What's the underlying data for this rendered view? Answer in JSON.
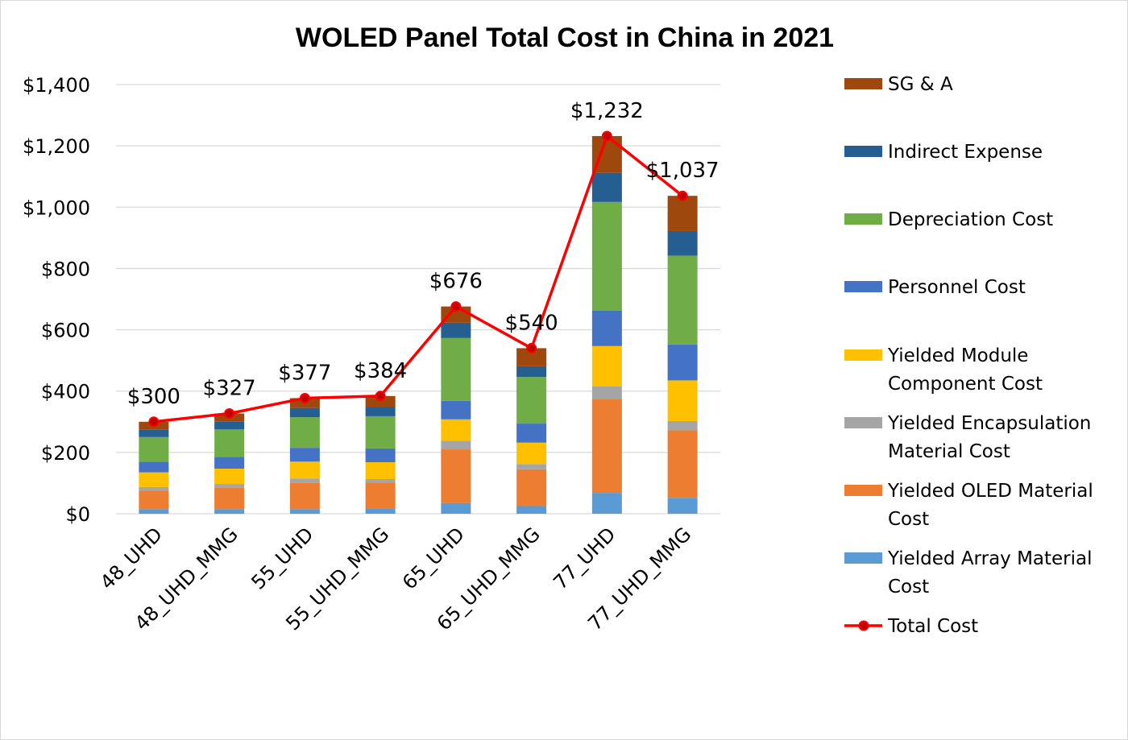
{
  "chart_data": {
    "type": "bar",
    "stacked": true,
    "title": "WOLED Panel Total Cost in China in 2021",
    "xlabel": "",
    "ylabel": "",
    "ylim": [
      0,
      1400
    ],
    "yticks": [
      0,
      200,
      400,
      600,
      800,
      1000,
      1200,
      1400
    ],
    "ytick_labels": [
      "$0",
      "$200",
      "$400",
      "$600",
      "$800",
      "$1,000",
      "$1,200",
      "$1,400"
    ],
    "grid": true,
    "legend_position": "right",
    "categories": [
      "48_UHD",
      "48_UHD_MMG",
      "55_UHD",
      "55_UHD_MMG",
      "65_UHD",
      "65_UHD_MMG",
      "77_UHD",
      "77_UHD_MMG"
    ],
    "series": [
      {
        "name": "Yielded Array Material Cost",
        "legend_lines": [
          "Yielded Array Material",
          "Cost"
        ],
        "color": "#5b9bd5",
        "values": [
          15,
          15,
          15,
          18,
          35,
          25,
          68,
          52
        ]
      },
      {
        "name": "Yielded OLED Material Cost",
        "legend_lines": [
          "Yielded OLED Material",
          "Cost"
        ],
        "color": "#ed7d31",
        "values": [
          60,
          70,
          85,
          83,
          175,
          120,
          305,
          220
        ]
      },
      {
        "name": "Yielded Encapsulation Material Cost",
        "legend_lines": [
          "Yielded Encapsulation",
          "Material Cost"
        ],
        "color": "#a5a5a5",
        "values": [
          12,
          12,
          15,
          12,
          28,
          17,
          42,
          30
        ]
      },
      {
        "name": "Yielded Module Component Cost",
        "legend_lines": [
          "Yielded Module",
          "Component Cost"
        ],
        "color": "#ffc000",
        "values": [
          48,
          50,
          55,
          55,
          70,
          70,
          132,
          133
        ]
      },
      {
        "name": "Personnel Cost",
        "legend_lines": [
          "Personnel Cost"
        ],
        "color": "#4472c4",
        "values": [
          35,
          38,
          45,
          45,
          60,
          62,
          115,
          117
        ]
      },
      {
        "name": "Depreciation Cost",
        "legend_lines": [
          "Depreciation Cost"
        ],
        "color": "#70ad47",
        "values": [
          80,
          90,
          100,
          105,
          205,
          152,
          355,
          290
        ]
      },
      {
        "name": "Indirect Expense",
        "legend_lines": [
          "Indirect Expense"
        ],
        "color": "#255e91",
        "values": [
          25,
          25,
          30,
          30,
          50,
          35,
          95,
          80
        ]
      },
      {
        "name": "SG & A",
        "legend_lines": [
          "SG & A"
        ],
        "color": "#9e480e",
        "values": [
          25,
          27,
          32,
          36,
          53,
          59,
          120,
          115
        ]
      }
    ],
    "line_series": {
      "name": "Total Cost",
      "color": "#ff0000",
      "marker_color": "#c00000",
      "values": [
        300,
        327,
        377,
        384,
        676,
        540,
        1232,
        1037
      ],
      "labels": [
        "$300",
        "$327",
        "$377",
        "$384",
        "$676",
        "$540",
        "$1,232",
        "$1,037"
      ]
    },
    "legend_order": [
      "SG & A",
      "Indirect Expense",
      "Depreciation Cost",
      "Personnel Cost",
      "Yielded Module Component Cost",
      "Yielded Encapsulation Material Cost",
      "Yielded OLED Material Cost",
      "Yielded Array Material Cost",
      "Total Cost"
    ]
  }
}
